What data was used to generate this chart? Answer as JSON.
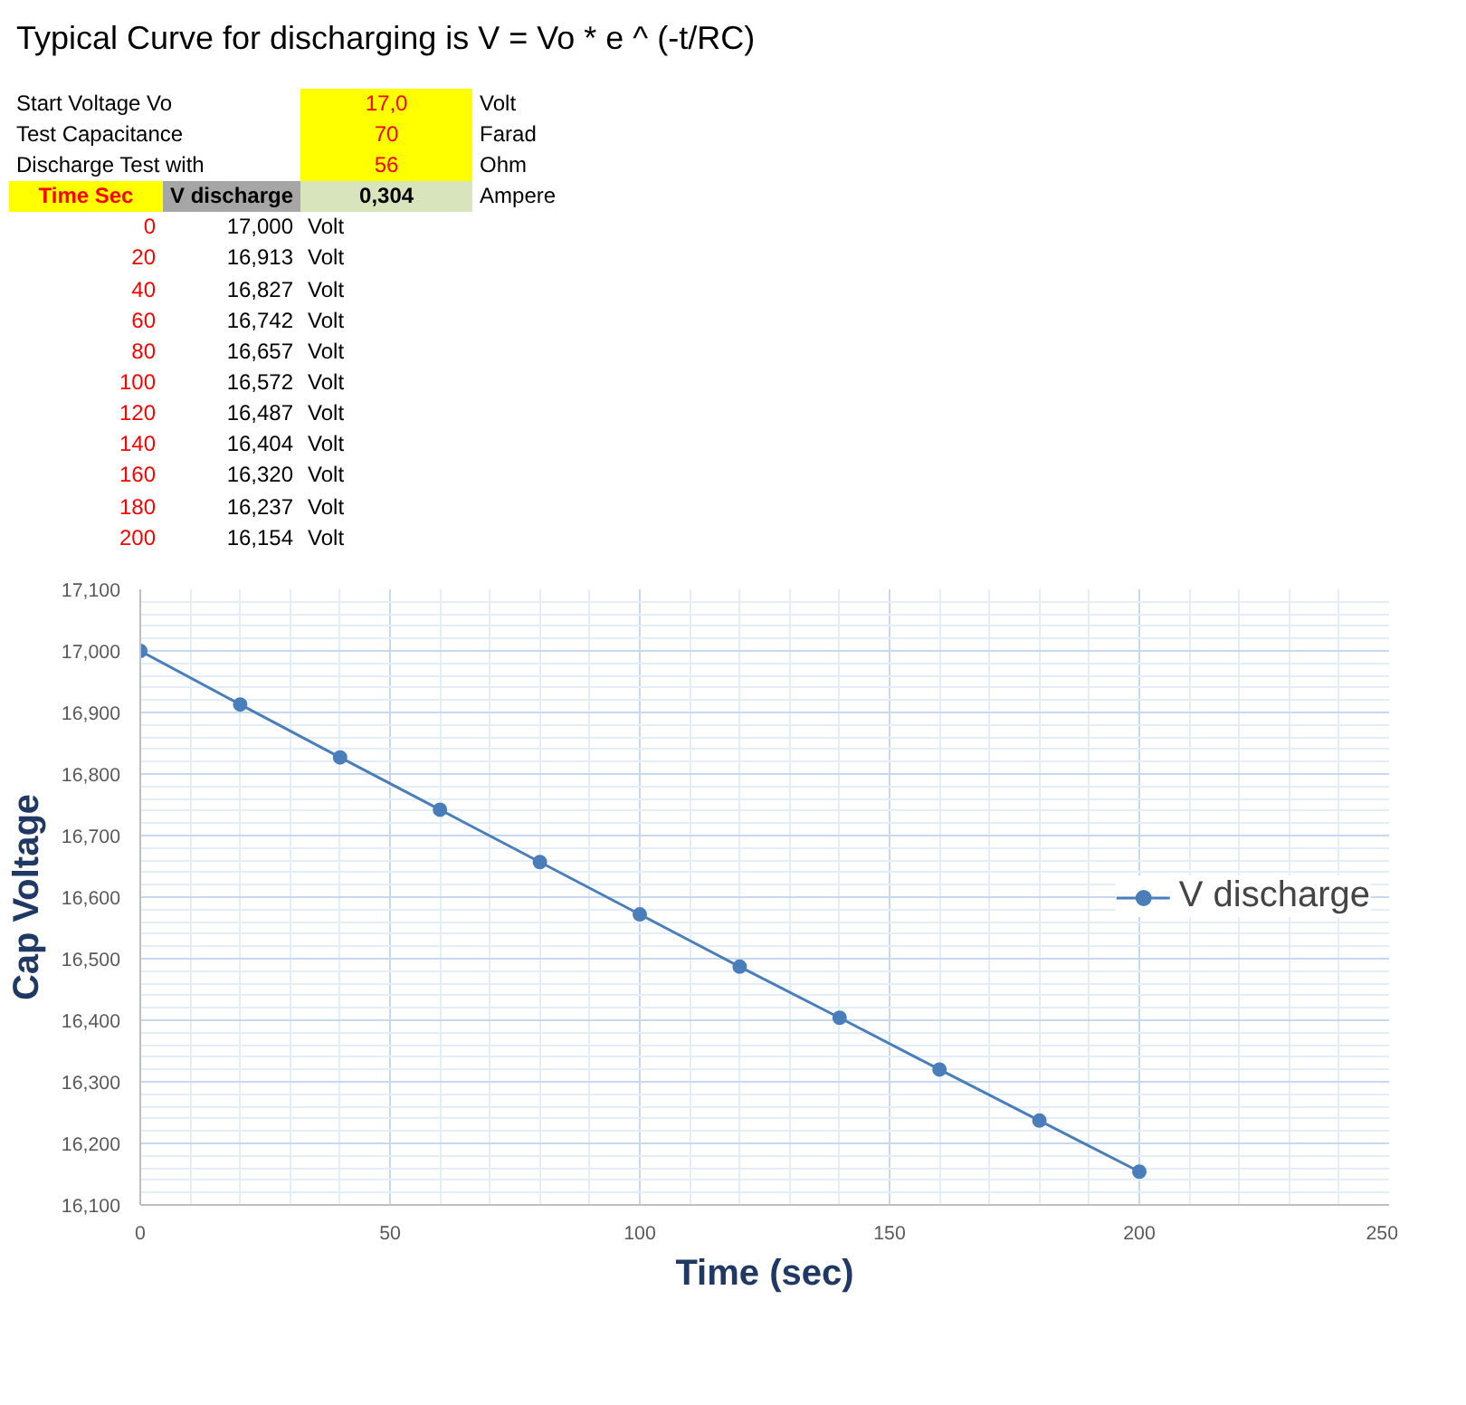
{
  "chart_data": {
    "type": "line",
    "title": "Typical Curve for discharging is V = Vo * e ^ (-t/RC)",
    "xlabel": "Time (sec)",
    "ylabel": "Cap Voltage",
    "annotations": [
      "Start Voltage Vo",
      "17,0",
      "Volt",
      "Test Capacitance",
      "70",
      "Farad",
      "Discharge Test with",
      "56",
      "Ohm",
      "0,304",
      "Ampere",
      "Time Sec",
      "0",
      "17,000",
      "Volt",
      "20",
      "16,913",
      "Volt",
      "40",
      "16,827",
      "Volt",
      "60",
      "16,742",
      "Volt",
      "80",
      "16,657",
      "Volt",
      "100",
      "16,572",
      "Volt",
      "120",
      "16,487",
      "Volt",
      "140",
      "16,404",
      "Volt",
      "160",
      "16,320",
      "Volt",
      "180",
      "16,237",
      "Volt",
      "200",
      "16,154",
      "Volt"
    ],
    "x": [
      0,
      20,
      40,
      60,
      80,
      100,
      120,
      140,
      160,
      180,
      200
    ],
    "series": [
      {
        "name": "V discharge",
        "color": "#4a7ebb",
        "values": [
          17.0,
          16.913,
          16.827,
          16.742,
          16.657,
          16.572,
          16.487,
          16.404,
          16.32,
          16.237,
          16.154
        ]
      }
    ],
    "xlim": [
      0,
      250
    ],
    "xticks": [
      0,
      50,
      100,
      150,
      200,
      250
    ],
    "ylim": [
      16.1,
      17.1
    ],
    "yticks": [
      {
        "value": 16.1,
        "label": "16,100"
      },
      {
        "value": 16.2,
        "label": "16,200"
      },
      {
        "value": 16.3,
        "label": "16,300"
      },
      {
        "value": 16.4,
        "label": "16,400"
      },
      {
        "value": 16.5,
        "label": "16,500"
      },
      {
        "value": 16.6,
        "label": "16,600"
      },
      {
        "value": 16.7,
        "label": "16,700"
      },
      {
        "value": 16.8,
        "label": "16,800"
      },
      {
        "value": 16.9,
        "label": "16,900"
      },
      {
        "value": 17.0,
        "label": "17,000"
      },
      {
        "value": 17.1,
        "label": "17,100"
      }
    ],
    "grid": true,
    "legend": "right",
    "marker": "circle",
    "line_style": "solid"
  }
}
